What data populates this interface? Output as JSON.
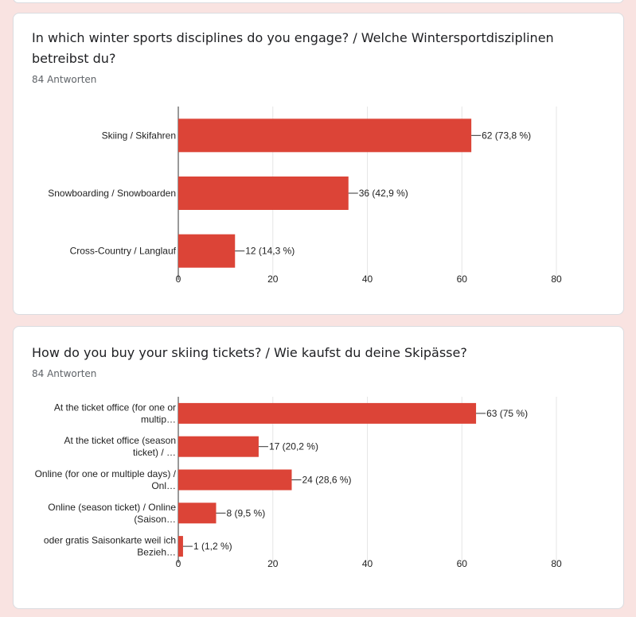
{
  "colors": {
    "bar": "#dc4437",
    "grid": "#e6e6e6",
    "axis": "#333333"
  },
  "questions": [
    {
      "title": "In which winter sports disciplines do you engage? / Welche Wintersportdisziplinen betreibst du?",
      "responses": "84 Antworten"
    },
    {
      "title": "How do you buy your skiing tickets? / Wie kaufst du deine Skipässe?",
      "responses": "84 Antworten"
    }
  ],
  "chart_data": [
    {
      "type": "bar",
      "orientation": "horizontal",
      "categories": [
        [
          "Skiing / Skifahren"
        ],
        [
          "Snowboarding / Snowboarden"
        ],
        [
          "Cross-Country / Langlauf"
        ]
      ],
      "values": [
        62,
        36,
        12
      ],
      "value_labels": [
        "62 (73,8 %)",
        "36 (42,9 %)",
        "12 (14,3 %)"
      ],
      "xlim": [
        0,
        80
      ],
      "xticks": [
        0,
        20,
        40,
        60,
        80
      ],
      "grid": true
    },
    {
      "type": "bar",
      "orientation": "horizontal",
      "categories": [
        [
          "At the ticket office (for one or",
          "multip…"
        ],
        [
          "At the ticket office (season",
          "ticket) / …"
        ],
        [
          "Online (for one or multiple days) /",
          "Onl…"
        ],
        [
          "Online (season ticket) / Online",
          "(Saison…"
        ],
        [
          "oder gratis Saisonkarte weil ich",
          "Bezieh…"
        ]
      ],
      "values": [
        63,
        17,
        24,
        8,
        1
      ],
      "value_labels": [
        "63 (75 %)",
        "17 (20,2 %)",
        "24 (28,6 %)",
        "8 (9,5 %)",
        "1 (1,2 %)"
      ],
      "xlim": [
        0,
        80
      ],
      "xticks": [
        0,
        20,
        40,
        60,
        80
      ],
      "grid": true
    }
  ]
}
